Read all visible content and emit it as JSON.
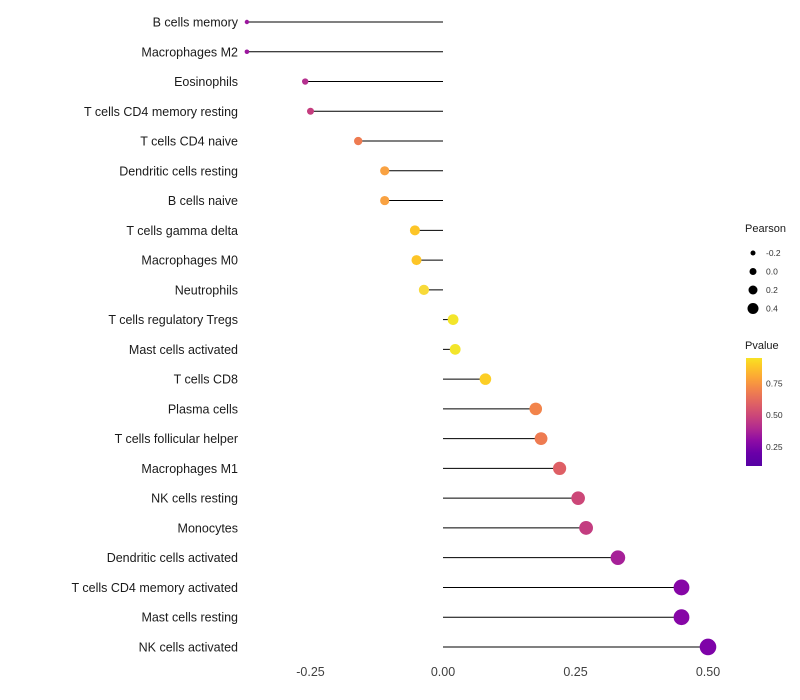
{
  "chart_data": {
    "type": "lollipop",
    "title": "",
    "xlabel": "",
    "ylabel": "",
    "grid": false,
    "x_ticks": [
      "-0.25",
      "0.00",
      "0.25",
      "0.50"
    ],
    "x_tick_values": [
      -0.25,
      0.0,
      0.25,
      0.5
    ],
    "xlim": [
      -0.41,
      0.57
    ],
    "rows": [
      {
        "label": "B cells memory",
        "pearson": -0.37,
        "pvalue": 0.3,
        "color": "#9c179e",
        "radius": 2.2
      },
      {
        "label": "Macrophages M2",
        "pearson": -0.37,
        "pvalue": 0.3,
        "color": "#9c179e",
        "radius": 2.3
      },
      {
        "label": "Eosinophils",
        "pearson": -0.26,
        "pvalue": 0.42,
        "color": "#b5308f",
        "radius": 3.2
      },
      {
        "label": "T cells CD4 memory resting",
        "pearson": -0.25,
        "pvalue": 0.47,
        "color": "#c53d7f",
        "radius": 3.5
      },
      {
        "label": "T cells CD4 naive",
        "pearson": -0.16,
        "pvalue": 0.65,
        "color": "#ee7b51",
        "radius": 4.2
      },
      {
        "label": "Dendritic cells resting",
        "pearson": -0.11,
        "pvalue": 0.77,
        "color": "#f9a242",
        "radius": 4.6
      },
      {
        "label": "B cells naive",
        "pearson": -0.11,
        "pvalue": 0.77,
        "color": "#f9a242",
        "radius": 4.6
      },
      {
        "label": "T cells gamma delta",
        "pearson": -0.053,
        "pvalue": 0.88,
        "color": "#fdc527",
        "radius": 5.0
      },
      {
        "label": "Macrophages M0",
        "pearson": -0.05,
        "pvalue": 0.88,
        "color": "#fdc527",
        "radius": 5.0
      },
      {
        "label": "Neutrophils",
        "pearson": -0.036,
        "pvalue": 0.9,
        "color": "#f8da39",
        "radius": 5.1
      },
      {
        "label": "T cells regulatory  Tregs",
        "pearson": 0.019,
        "pvalue": 0.95,
        "color": "#f3e52a",
        "radius": 5.4
      },
      {
        "label": "Mast cells activated",
        "pearson": 0.023,
        "pvalue": 0.95,
        "color": "#f3e52a",
        "radius": 5.4
      },
      {
        "label": "T cells CD8",
        "pearson": 0.08,
        "pvalue": 0.85,
        "color": "#fcce25",
        "radius": 5.8
      },
      {
        "label": "Plasma cells",
        "pearson": 0.175,
        "pvalue": 0.68,
        "color": "#f2844b",
        "radius": 6.3
      },
      {
        "label": "T cells follicular helper",
        "pearson": 0.185,
        "pvalue": 0.64,
        "color": "#ee7b51",
        "radius": 6.4
      },
      {
        "label": "Macrophages M1",
        "pearson": 0.22,
        "pvalue": 0.55,
        "color": "#de5f65",
        "radius": 6.6
      },
      {
        "label": "NK cells resting",
        "pearson": 0.255,
        "pvalue": 0.5,
        "color": "#cc4778",
        "radius": 6.8
      },
      {
        "label": "Monocytes",
        "pearson": 0.27,
        "pvalue": 0.46,
        "color": "#c33d80",
        "radius": 6.9
      },
      {
        "label": "Dendritic cells activated",
        "pearson": 0.33,
        "pvalue": 0.33,
        "color": "#a62098",
        "radius": 7.3
      },
      {
        "label": "T cells CD4 memory activated",
        "pearson": 0.45,
        "pvalue": 0.18,
        "color": "#8606a6",
        "radius": 7.9
      },
      {
        "label": "Mast cells resting",
        "pearson": 0.45,
        "pvalue": 0.18,
        "color": "#8606a6",
        "radius": 7.9
      },
      {
        "label": "NK cells activated",
        "pearson": 0.5,
        "pvalue": 0.14,
        "color": "#7e03a8",
        "radius": 8.3
      }
    ],
    "legend_pearson": {
      "title": "Pearson",
      "items": [
        {
          "label": "-0.2",
          "radius": 2.5
        },
        {
          "label": "0.0",
          "radius": 3.5
        },
        {
          "label": "0.2",
          "radius": 4.5
        },
        {
          "label": "0.4",
          "radius": 5.5
        }
      ],
      "dot_color": "#000000"
    },
    "legend_pvalue": {
      "title": "Pvalue",
      "ticks": [
        {
          "label": "0.75",
          "f": 0.235
        },
        {
          "label": "0.50",
          "f": 0.53
        },
        {
          "label": "0.25",
          "f": 0.824
        }
      ],
      "gradient": [
        {
          "offset": 0.0,
          "color": "#f7e225"
        },
        {
          "offset": 0.06,
          "color": "#fccd25"
        },
        {
          "offset": 0.18,
          "color": "#fca636"
        },
        {
          "offset": 0.29,
          "color": "#f2844b"
        },
        {
          "offset": 0.41,
          "color": "#e16462"
        },
        {
          "offset": 0.53,
          "color": "#cc4778"
        },
        {
          "offset": 0.65,
          "color": "#b12a90"
        },
        {
          "offset": 0.76,
          "color": "#8f0da4"
        },
        {
          "offset": 0.88,
          "color": "#6a00a8"
        },
        {
          "offset": 1.0,
          "color": "#5601a4"
        }
      ]
    },
    "colors": {
      "stem": "#000000",
      "background": "#ffffff"
    }
  }
}
